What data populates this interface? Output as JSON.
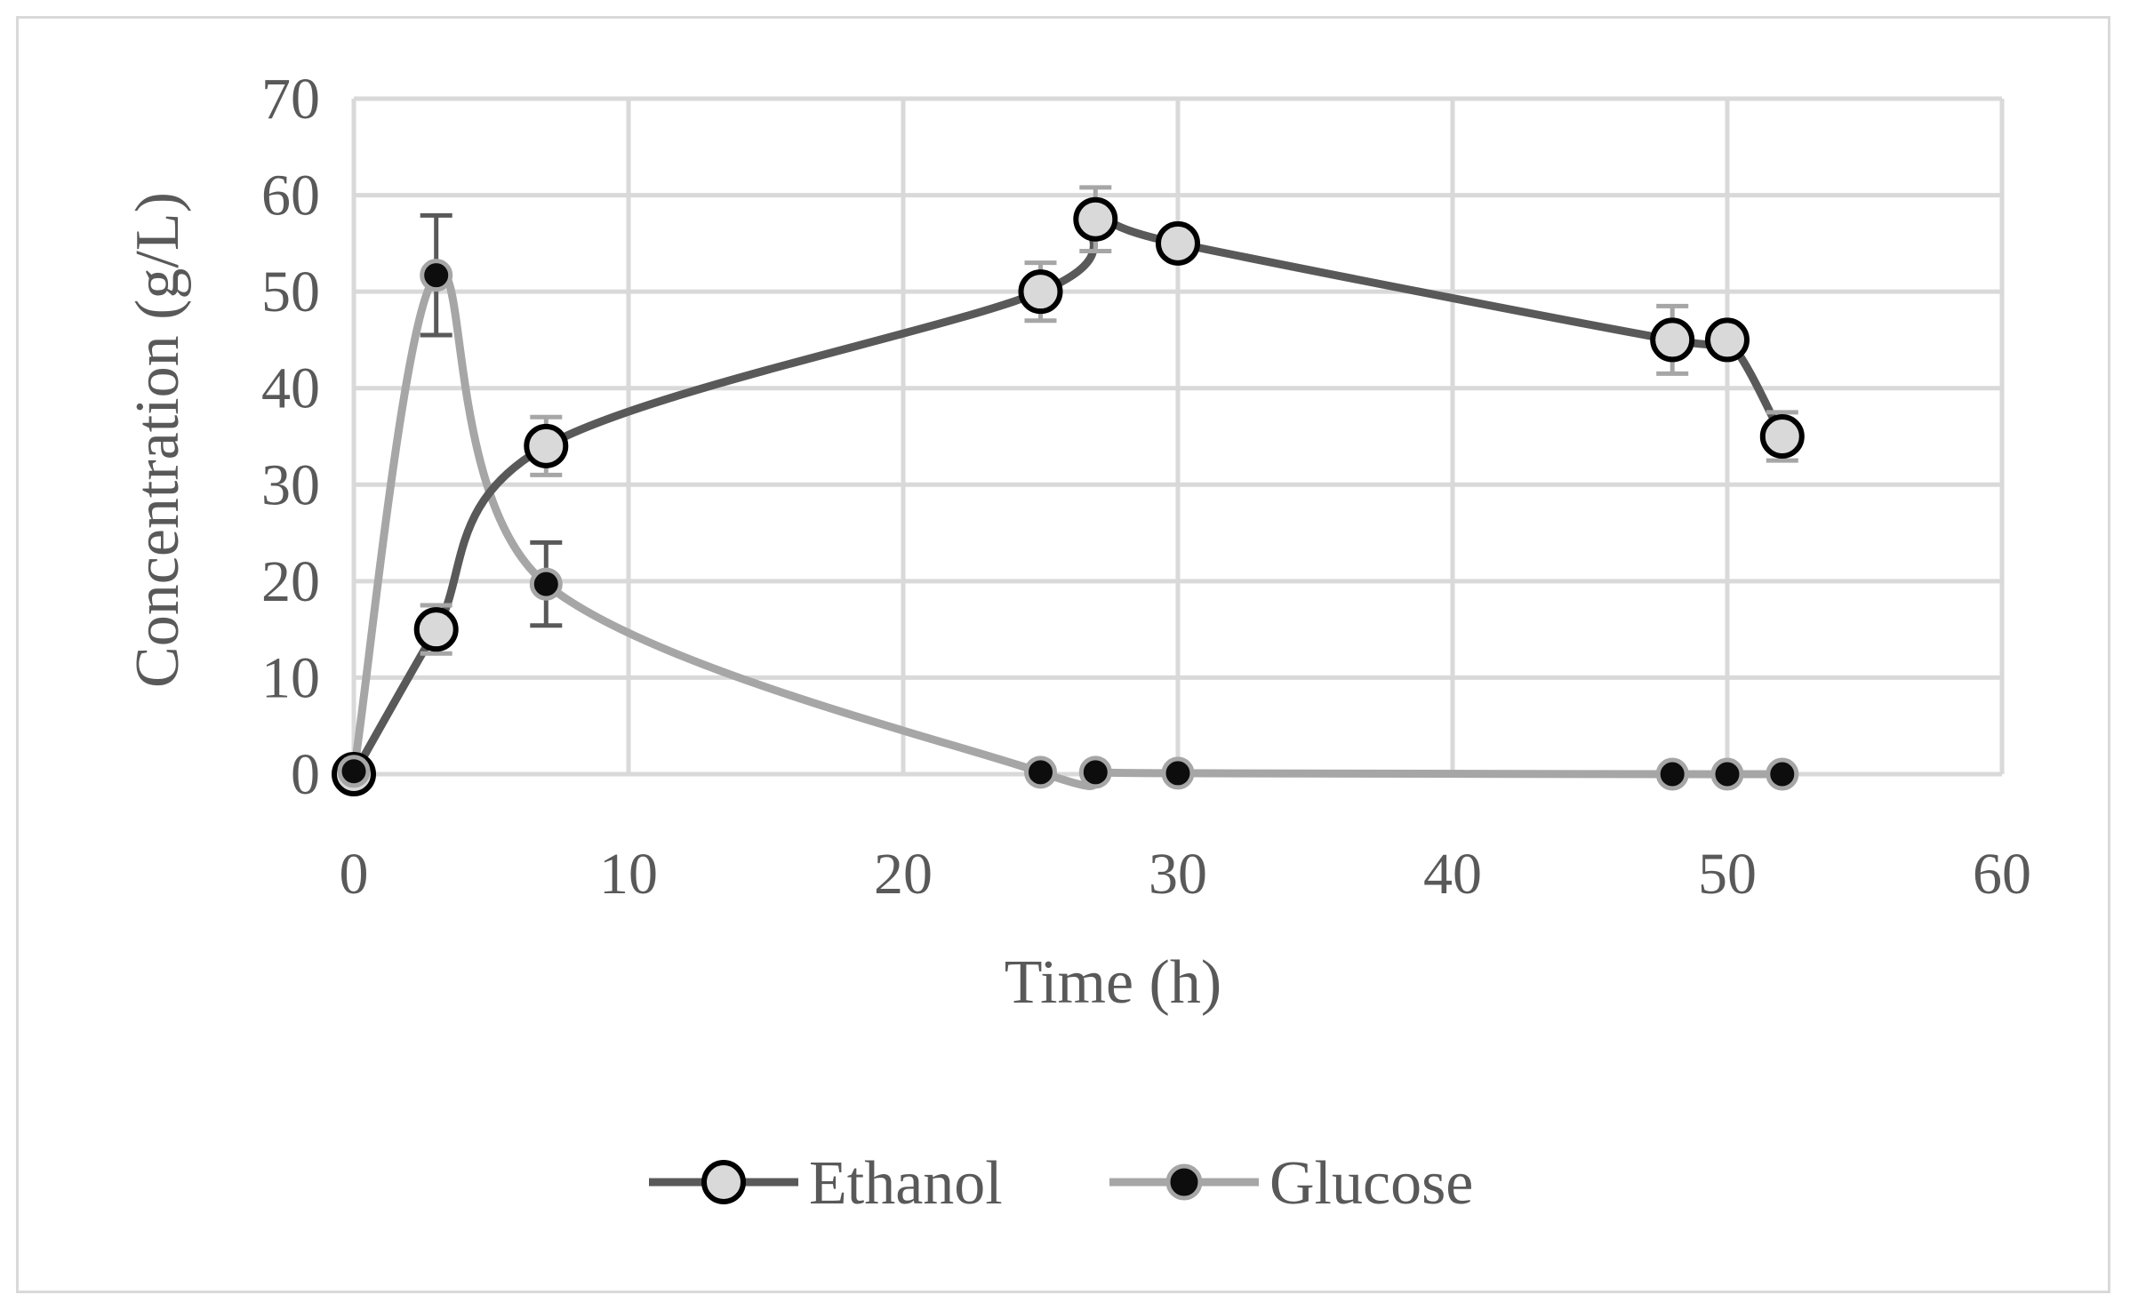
{
  "chart_data": {
    "type": "scatter",
    "title": "",
    "xlabel": "Time (h)",
    "ylabel": "Concentration (g/L)",
    "xlim": [
      0,
      60
    ],
    "ylim": [
      0,
      70
    ],
    "xticks": [
      0,
      10,
      20,
      30,
      40,
      50,
      60
    ],
    "yticks": [
      0,
      10,
      20,
      30,
      40,
      50,
      60,
      70
    ],
    "grid": true,
    "legend_position": "bottom",
    "series": [
      {
        "name": "Ethanol",
        "line_color": "#595959",
        "marker_fill": "#d9d9d9",
        "marker_edge": "#000000",
        "x": [
          0,
          3,
          7,
          25,
          27,
          30,
          48,
          50,
          52
        ],
        "y": [
          0,
          15,
          34,
          50,
          57.5,
          55,
          45,
          45,
          35
        ],
        "error": [
          0,
          2.5,
          3,
          3,
          3.3,
          0,
          3.5,
          0,
          2.5
        ],
        "error_color": "#a6a6a6"
      },
      {
        "name": "Glucose",
        "line_color": "#a6a6a6",
        "marker_fill": "#0d0d0d",
        "marker_edge": "#a6a6a6",
        "x": [
          0,
          3,
          7,
          25,
          27,
          30,
          48,
          50,
          52
        ],
        "y": [
          0.3,
          51.7,
          19.7,
          0.2,
          0.2,
          0.1,
          0,
          0,
          0
        ],
        "error": [
          0,
          6.2,
          4.3,
          0,
          0,
          0,
          0,
          0,
          0
        ],
        "error_color": "#595959"
      }
    ]
  }
}
